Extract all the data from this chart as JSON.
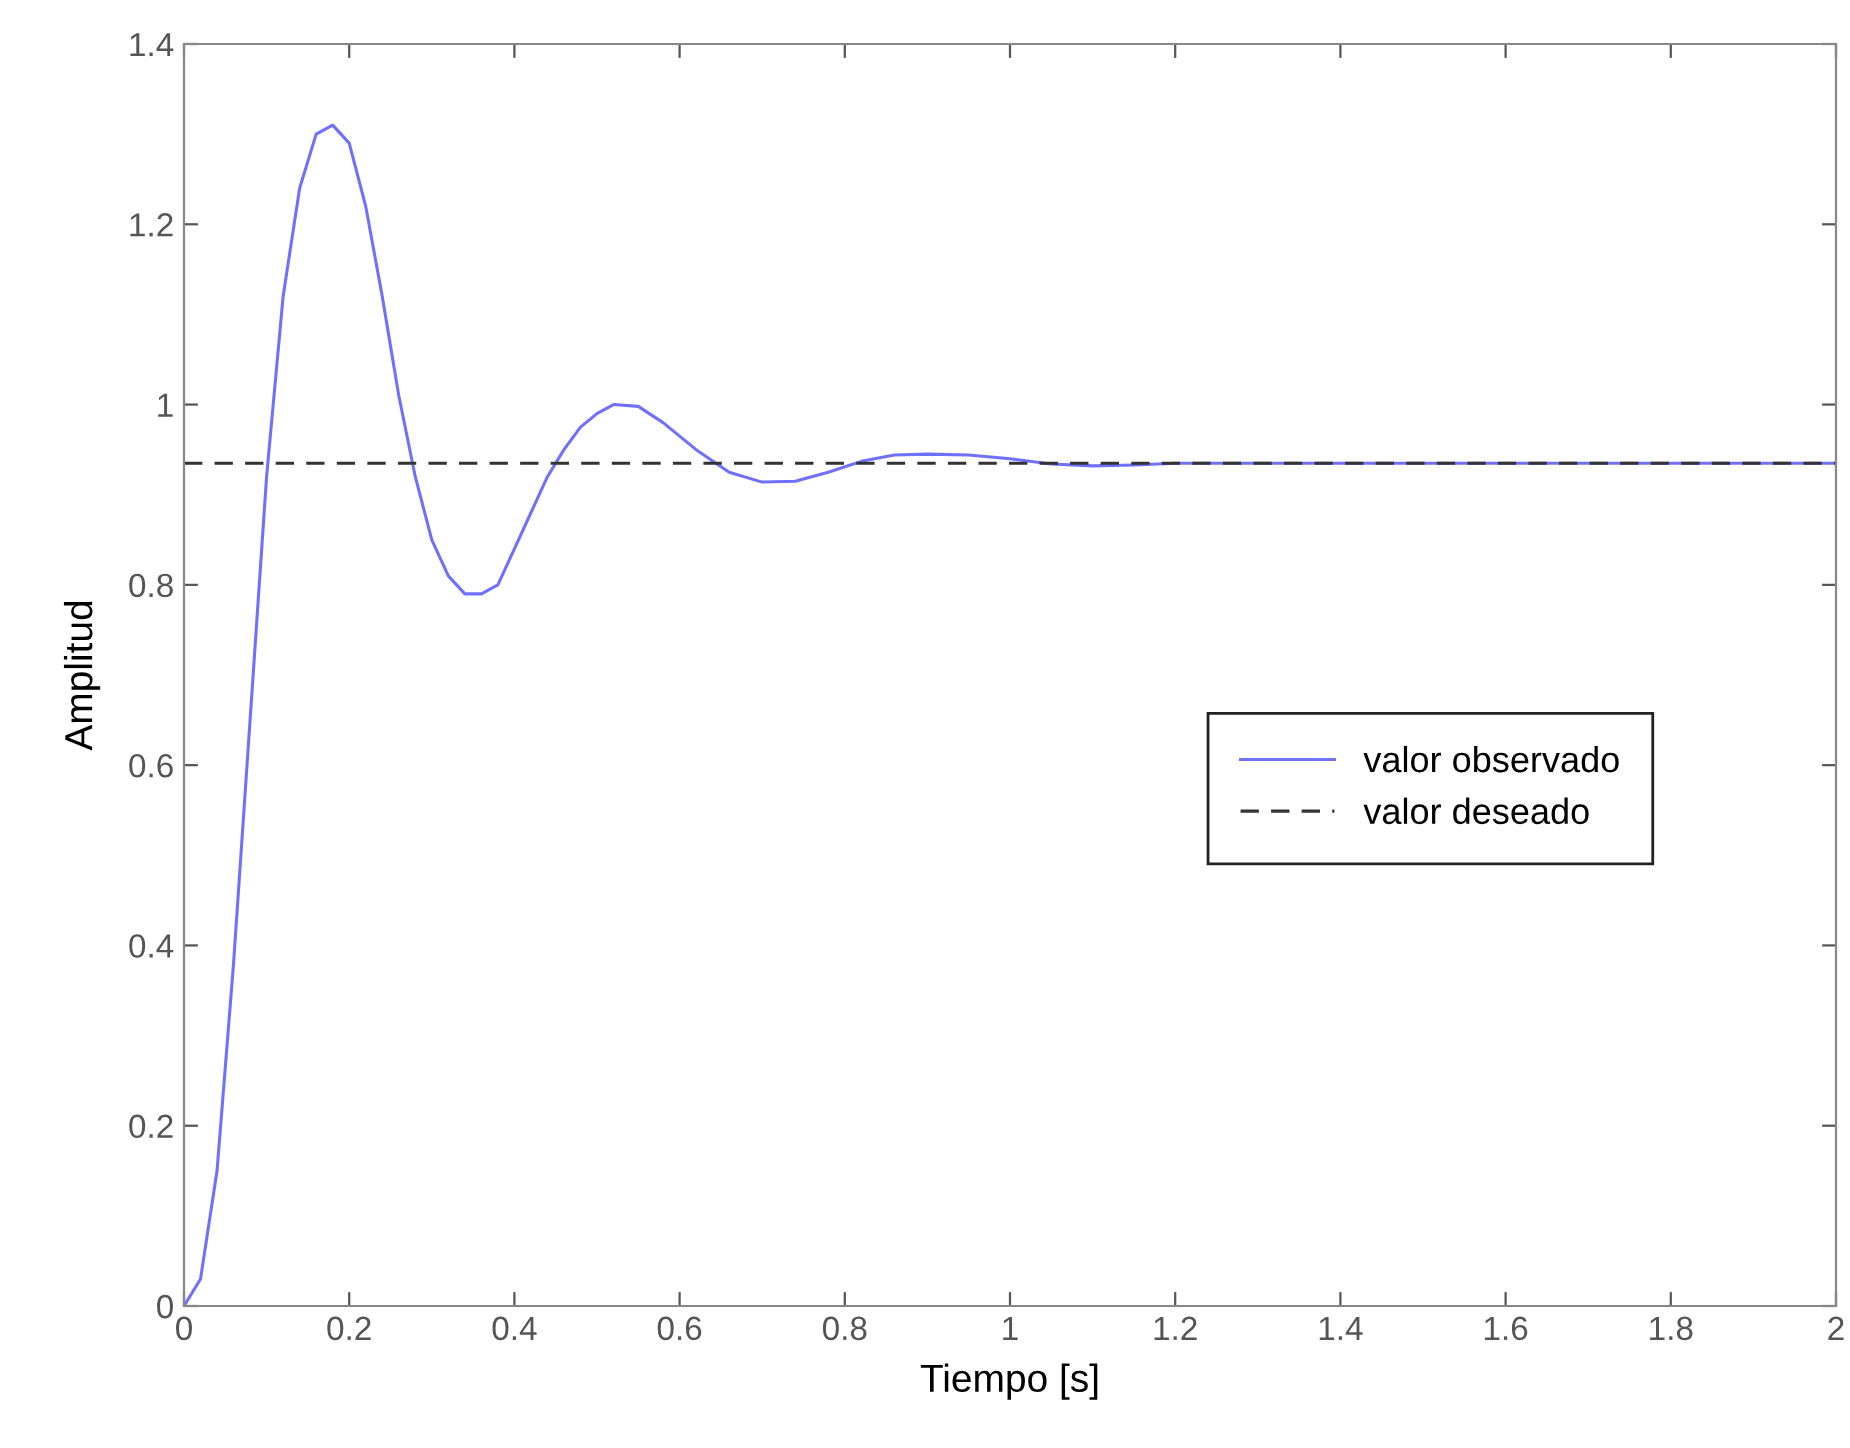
{
  "chart_data": {
    "type": "line",
    "xlabel": "Tiempo [s]",
    "ylabel": "Amplitud",
    "xlim": [
      0,
      2
    ],
    "xticks": [
      0,
      0.2,
      0.4,
      0.6,
      0.8,
      1,
      1.2,
      1.4,
      1.6,
      1.8,
      2
    ],
    "ylim": [
      0,
      1.4
    ],
    "yticks": [
      0,
      0.2,
      0.4,
      0.6,
      0.8,
      1,
      1.2,
      1.4
    ],
    "grid": false,
    "legend": "right",
    "marker": "none",
    "series": [
      {
        "name": "valor observado",
        "color": "#7070ff",
        "line_style": "solid",
        "x": [
          0,
          0.02,
          0.04,
          0.06,
          0.08,
          0.1,
          0.12,
          0.14,
          0.16,
          0.18,
          0.2,
          0.22,
          0.24,
          0.26,
          0.28,
          0.3,
          0.32,
          0.34,
          0.36,
          0.38,
          0.4,
          0.42,
          0.44,
          0.46,
          0.48,
          0.5,
          0.52,
          0.55,
          0.58,
          0.62,
          0.66,
          0.7,
          0.74,
          0.78,
          0.82,
          0.86,
          0.9,
          0.95,
          1.0,
          1.05,
          1.1,
          1.15,
          1.2,
          1.5,
          2.0
        ],
        "values": [
          0,
          0.03,
          0.15,
          0.38,
          0.65,
          0.92,
          1.12,
          1.24,
          1.3,
          1.31,
          1.29,
          1.22,
          1.12,
          1.01,
          0.92,
          0.85,
          0.81,
          0.79,
          0.79,
          0.8,
          0.84,
          0.88,
          0.92,
          0.95,
          0.975,
          0.99,
          1.0,
          0.998,
          0.98,
          0.95,
          0.925,
          0.914,
          0.915,
          0.925,
          0.937,
          0.944,
          0.945,
          0.944,
          0.94,
          0.934,
          0.932,
          0.933,
          0.935,
          0.935,
          0.935
        ]
      },
      {
        "name": "valor deseado",
        "color": "#333333",
        "line_style": "dashed",
        "x": [
          0,
          2
        ],
        "values": [
          0.935,
          0.935
        ]
      }
    ]
  }
}
